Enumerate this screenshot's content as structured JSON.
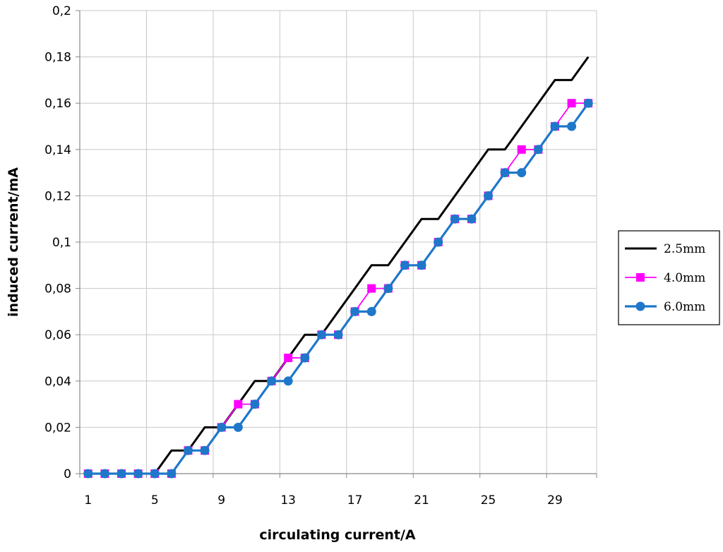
{
  "chart_data": {
    "type": "line",
    "xlabel": "circulating current/A",
    "ylabel": "induced current/mA",
    "x": [
      1,
      2,
      3,
      4,
      5,
      6,
      7,
      8,
      9,
      10,
      11,
      12,
      13,
      14,
      15,
      16,
      17,
      18,
      19,
      20,
      21,
      22,
      23,
      24,
      25,
      26,
      27,
      28,
      29,
      30,
      31
    ],
    "x_tick_labels": [
      "1",
      "5",
      "9",
      "13",
      "17",
      "21",
      "25",
      "29"
    ],
    "x_tick_values": [
      1,
      5,
      9,
      13,
      17,
      21,
      25,
      29
    ],
    "xlim": [
      0.5,
      31.5
    ],
    "ylim": [
      0,
      0.2
    ],
    "y_ticks": [
      0,
      0.02,
      0.04,
      0.06,
      0.08,
      0.1,
      0.12,
      0.14,
      0.16,
      0.18,
      0.2
    ],
    "y_tick_labels": [
      "0",
      "0,02",
      "0,04",
      "0,06",
      "0,08",
      "0,1",
      "0,12",
      "0,14",
      "0,16",
      "0,18",
      "0,2"
    ],
    "grid": true,
    "legend_position": "right",
    "series": [
      {
        "name": "2.5mm",
        "color": "#000000",
        "marker": "none",
        "values": [
          0,
          0,
          0,
          0,
          0,
          0.01,
          0.01,
          0.02,
          0.02,
          0.03,
          0.04,
          0.04,
          0.05,
          0.06,
          0.06,
          0.07,
          0.08,
          0.09,
          0.09,
          0.1,
          0.11,
          0.11,
          0.12,
          0.13,
          0.14,
          0.14,
          0.15,
          0.16,
          0.17,
          0.17,
          0.18
        ]
      },
      {
        "name": "4.0mm",
        "color": "#ff00ff",
        "marker": "square",
        "values": [
          0,
          0,
          0,
          0,
          0,
          0,
          0.01,
          0.01,
          0.02,
          0.03,
          0.03,
          0.04,
          0.05,
          0.05,
          0.06,
          0.06,
          0.07,
          0.08,
          0.08,
          0.09,
          0.09,
          0.1,
          0.11,
          0.11,
          0.12,
          0.13,
          0.14,
          0.14,
          0.15,
          0.16,
          0.16
        ]
      },
      {
        "name": "6.0mm",
        "color": "#1f77c9",
        "marker": "circle",
        "values": [
          0,
          0,
          0,
          0,
          0,
          0,
          0.01,
          0.01,
          0.02,
          0.02,
          0.03,
          0.04,
          0.04,
          0.05,
          0.06,
          0.06,
          0.07,
          0.07,
          0.08,
          0.09,
          0.09,
          0.1,
          0.11,
          0.11,
          0.12,
          0.13,
          0.13,
          0.14,
          0.15,
          0.15,
          0.16
        ]
      }
    ]
  }
}
